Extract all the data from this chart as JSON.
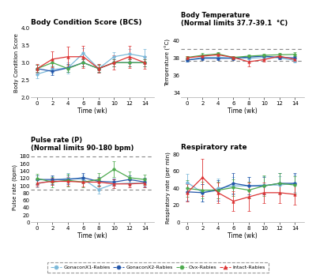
{
  "time": [
    0,
    2,
    4,
    6,
    8,
    10,
    12,
    14
  ],
  "colors": {
    "gonacon1": "#7ab8d9",
    "gonacon2": "#2255aa",
    "ovx": "#4daa4d",
    "intact": "#dd3333"
  },
  "markers": {
    "gonacon1": "o",
    "gonacon2": "o",
    "ovx": "o",
    "intact": "^"
  },
  "bcs": {
    "gonacon1_mean": [
      2.67,
      2.8,
      2.85,
      3.27,
      2.83,
      3.17,
      3.25,
      3.17
    ],
    "gonacon1_err": [
      0.12,
      0.12,
      0.15,
      0.15,
      0.12,
      0.13,
      0.15,
      0.22
    ],
    "gonacon2_mean": [
      2.83,
      2.75,
      2.85,
      3.0,
      2.83,
      3.0,
      3.0,
      3.0
    ],
    "gonacon2_err": [
      0.1,
      0.1,
      0.12,
      0.1,
      0.1,
      0.1,
      0.1,
      0.1
    ],
    "ovx_mean": [
      2.83,
      3.0,
      2.83,
      3.0,
      2.83,
      3.0,
      3.0,
      3.0
    ],
    "ovx_err": [
      0.1,
      0.1,
      0.1,
      0.1,
      0.1,
      0.1,
      0.1,
      0.1
    ],
    "intact_mean": [
      2.83,
      3.1,
      3.17,
      3.17,
      2.83,
      3.0,
      3.17,
      3.0
    ],
    "intact_err": [
      0.12,
      0.22,
      0.28,
      0.32,
      0.12,
      0.2,
      0.32,
      0.18
    ],
    "ylim": [
      2.0,
      4.0
    ],
    "yticks": [
      2.0,
      2.5,
      3.0,
      3.5,
      4.0
    ],
    "ylabel": "Body Condition Score",
    "title": "Body Condition Score (BCS)"
  },
  "temp": {
    "gonacon1_mean": [
      37.8,
      38.1,
      38.1,
      38.05,
      38.0,
      38.1,
      38.05,
      37.75
    ],
    "gonacon1_err": [
      0.18,
      0.18,
      0.12,
      0.15,
      0.15,
      0.18,
      0.18,
      0.25
    ],
    "gonacon2_mean": [
      37.8,
      38.0,
      38.0,
      38.0,
      38.15,
      38.25,
      38.1,
      38.05
    ],
    "gonacon2_err": [
      0.22,
      0.18,
      0.18,
      0.18,
      0.18,
      0.22,
      0.18,
      0.18
    ],
    "ovx_mean": [
      38.1,
      38.35,
      38.5,
      38.1,
      38.25,
      38.35,
      38.4,
      38.45
    ],
    "ovx_err": [
      0.18,
      0.22,
      0.18,
      0.18,
      0.18,
      0.18,
      0.22,
      0.22
    ],
    "intact_mean": [
      38.05,
      38.25,
      38.4,
      38.1,
      37.6,
      37.85,
      38.25,
      37.85
    ],
    "intact_err": [
      0.22,
      0.22,
      0.22,
      0.18,
      0.55,
      0.22,
      0.28,
      0.22
    ],
    "ylim": [
      33.5,
      41.5
    ],
    "yticks": [
      34,
      36,
      38,
      40
    ],
    "hline_low": 37.7,
    "hline_high": 39.1,
    "ylabel": "Temperature (°C)",
    "title": "Body Temperature",
    "subtitle": "(Normal limits 37.7-39.1  °C)"
  },
  "pulse": {
    "gonacon1_mean": [
      105,
      115,
      120,
      118,
      90,
      105,
      107,
      107
    ],
    "gonacon1_err": [
      10,
      12,
      14,
      12,
      12,
      12,
      12,
      12
    ],
    "gonacon2_mean": [
      117,
      117,
      117,
      122,
      112,
      110,
      117,
      110
    ],
    "gonacon2_err": [
      12,
      12,
      12,
      12,
      12,
      10,
      12,
      12
    ],
    "ovx_mean": [
      120,
      110,
      115,
      110,
      117,
      145,
      122,
      117
    ],
    "ovx_err": [
      12,
      14,
      17,
      14,
      17,
      22,
      17,
      14
    ],
    "intact_mean": [
      107,
      112,
      112,
      110,
      110,
      105,
      105,
      107
    ],
    "intact_err": [
      10,
      10,
      12,
      12,
      12,
      12,
      10,
      12
    ],
    "ylim": [
      0,
      190
    ],
    "yticks": [
      0,
      20,
      40,
      60,
      80,
      100,
      120,
      140,
      160,
      180
    ],
    "hline_low": 90,
    "hline_high": 180,
    "ylabel": "Pulse rate (bpm)",
    "title": "Pulse rate (P)",
    "subtitle": "(Normal limits 90-180 bpm)"
  },
  "resp": {
    "gonacon1_mean": [
      47,
      35,
      40,
      43,
      43,
      44,
      44,
      46
    ],
    "gonacon1_err": [
      10,
      10,
      12,
      10,
      10,
      10,
      10,
      10
    ],
    "gonacon2_mean": [
      36,
      35,
      38,
      46,
      43,
      43,
      46,
      46
    ],
    "gonacon2_err": [
      10,
      10,
      12,
      12,
      10,
      10,
      12,
      12
    ],
    "ovx_mean": [
      40,
      38,
      38,
      41,
      38,
      43,
      46,
      44
    ],
    "ovx_err": [
      10,
      10,
      10,
      10,
      10,
      12,
      12,
      10
    ],
    "intact_mean": [
      35,
      53,
      35,
      25,
      30,
      35,
      35,
      33
    ],
    "intact_err": [
      10,
      22,
      12,
      12,
      17,
      12,
      12,
      12
    ],
    "ylim": [
      0,
      82
    ],
    "yticks": [
      0,
      20,
      40,
      60,
      80
    ],
    "ylabel": "Respiratory rate (per min)",
    "title": "Respiratory rate"
  },
  "legend": {
    "labels": [
      "GonaconX1-Rabies",
      "GonaconX2-Rabies",
      "Ovx-Rabies",
      "Intact-Rabies"
    ]
  },
  "xlabel": "Time (wk)",
  "xticks": [
    0,
    2,
    4,
    6,
    8,
    10,
    12,
    14
  ]
}
